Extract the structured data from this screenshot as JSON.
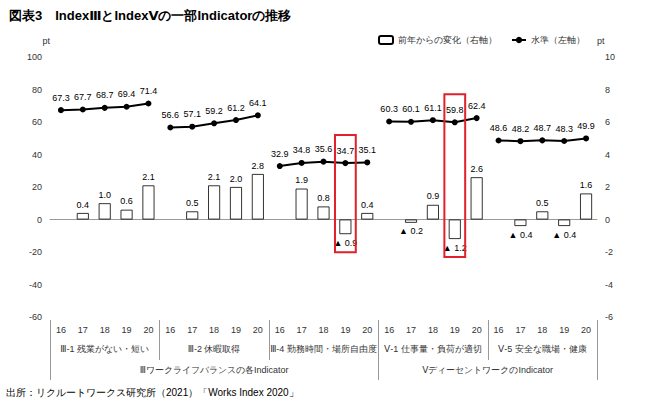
{
  "chart_data": {
    "type": "bar",
    "title": "図表3　IndexⅢとIndexⅤの一部Indicatorの推移",
    "source": "出所：リクルートワークス研究所（2021）「Works Index 2020」",
    "y_label": "pt",
    "y2_label": "pt",
    "ylim": [
      -60,
      100
    ],
    "yticks": [
      -60,
      -40,
      -20,
      0,
      20,
      40,
      60,
      80,
      100
    ],
    "y2lim": [
      -6,
      10
    ],
    "y2ticks": [
      -6,
      -4,
      -2,
      0,
      2,
      4,
      6,
      8,
      10
    ],
    "grid": false,
    "legend": "top-right",
    "data_labels": true,
    "series": [
      {
        "name": "前年からの変化（右軸）",
        "type": "bar",
        "axis": "y2",
        "color": "#ffffff"
      },
      {
        "name": "水準（左軸）",
        "type": "line",
        "axis": "y",
        "color": "#000000",
        "marker": "circle"
      }
    ],
    "sections": [
      {
        "label": "Ⅲワークライフバランスの各Indicator",
        "panels": [
          {
            "label": "Ⅲ-1 残業がない・短い",
            "categories": [
              "16",
              "17",
              "18",
              "19",
              "20"
            ],
            "series": [
              {
                "values": [
                  null,
                  0.4,
                  1.0,
                  0.6,
                  2.1
                ],
                "value_labels": [
                  null,
                  "0.4",
                  "1.0",
                  "0.6",
                  "2.1"
                ]
              },
              {
                "values": [
                  67.3,
                  67.7,
                  68.7,
                  69.4,
                  71.4
                ]
              }
            ]
          },
          {
            "label": "Ⅲ-2 休暇取得",
            "categories": [
              "16",
              "17",
              "18",
              "19",
              "20"
            ],
            "series": [
              {
                "values": [
                  null,
                  0.5,
                  2.1,
                  2.0,
                  2.8
                ],
                "value_labels": [
                  null,
                  "0.5",
                  "2.1",
                  "2.0",
                  "2.8"
                ]
              },
              {
                "values": [
                  56.6,
                  57.1,
                  59.2,
                  61.2,
                  64.1
                ]
              }
            ]
          },
          {
            "label": "Ⅲ-4 勤務時間・場所自由度",
            "categories": [
              "16",
              "17",
              "18",
              "19",
              "20"
            ],
            "highlight": "19",
            "series": [
              {
                "values": [
                  null,
                  1.9,
                  0.8,
                  -0.9,
                  0.4
                ],
                "value_labels": [
                  null,
                  "1.9",
                  "0.8",
                  "▲ 0.9",
                  "0.4"
                ]
              },
              {
                "values": [
                  32.9,
                  34.8,
                  35.6,
                  34.7,
                  35.1
                ]
              }
            ]
          }
        ]
      },
      {
        "label": "ⅤディーセントワークのIndicator",
        "panels": [
          {
            "label": "Ⅴ-1 仕事量・負荷が適切",
            "categories": [
              "16",
              "17",
              "18",
              "19",
              "20"
            ],
            "highlight": "19",
            "series": [
              {
                "values": [
                  null,
                  -0.2,
                  0.9,
                  -1.2,
                  2.6
                ],
                "value_labels": [
                  null,
                  "▲ 0.2",
                  "0.9",
                  "▲ 1.2",
                  "2.6"
                ]
              },
              {
                "values": [
                  60.3,
                  60.1,
                  61.1,
                  59.8,
                  62.4
                ]
              }
            ]
          },
          {
            "label": "Ⅴ-5 安全な職場・健康",
            "categories": [
              "16",
              "17",
              "18",
              "19",
              "20"
            ],
            "series": [
              {
                "values": [
                  null,
                  -0.4,
                  0.5,
                  -0.4,
                  1.6
                ],
                "value_labels": [
                  null,
                  "▲ 0.4",
                  "0.5",
                  "▲ 0.4",
                  "1.6"
                ]
              },
              {
                "values": [
                  48.6,
                  48.2,
                  48.7,
                  48.3,
                  49.9
                ]
              }
            ]
          }
        ]
      }
    ]
  }
}
